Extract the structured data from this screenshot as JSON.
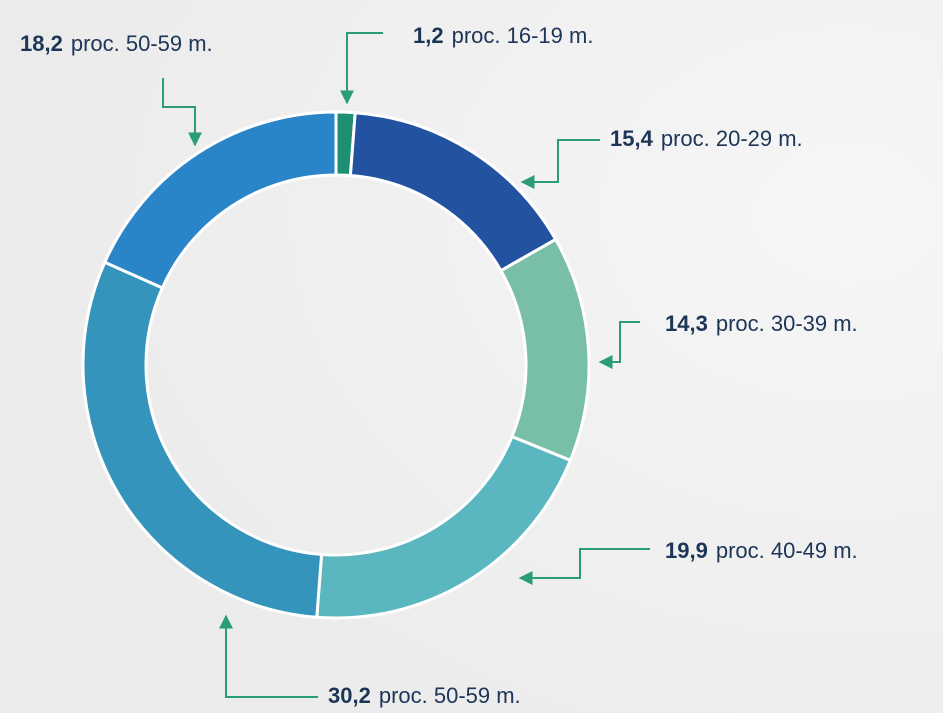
{
  "chart_data": {
    "type": "donut",
    "categories": [
      "proc. 16-19 m.",
      "proc. 20-29 m.",
      "proc. 30-39 m.",
      "proc. 40-49 m.",
      "proc. 50-59 m.",
      "proc. 50-59 m."
    ],
    "values": [
      1.2,
      15.4,
      14.3,
      19.9,
      30.2,
      18.2
    ],
    "value_labels": [
      "1,2",
      "15,4",
      "14,3",
      "19,9",
      "30,2",
      "18,2"
    ],
    "colors": [
      "#1e8f72",
      "#2252a0",
      "#78bfa6",
      "#5ab6bf",
      "#3494bb",
      "#2a84c8"
    ]
  }
}
